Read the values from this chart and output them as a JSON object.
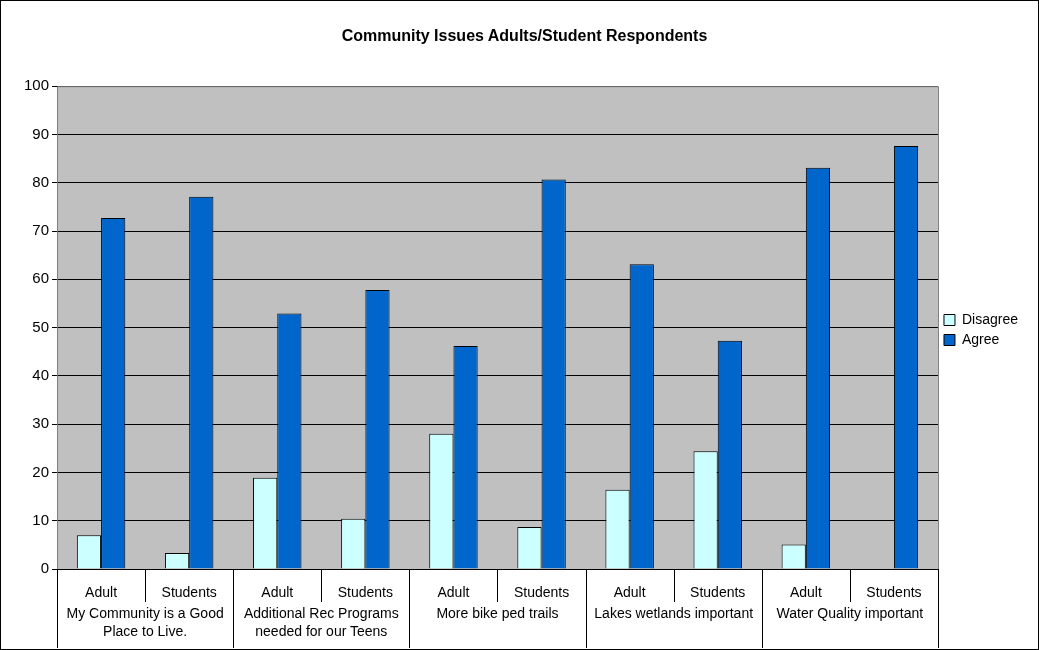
{
  "chart_data": {
    "type": "bar",
    "title": "Community Issues Adults/Student Respondents",
    "categories": [
      "Adult",
      "Students",
      "Adult",
      "Students",
      "Adult",
      "Students",
      "Adult",
      "Students",
      "Adult",
      "Students"
    ],
    "annotations": [
      "My Community is a Good Place to Live.",
      "Additional Rec Programs needed for our Teens",
      "More bike ped trails",
      "Lakes wetlands important",
      "Water Quality important"
    ],
    "series": [
      {
        "name": "Disagree",
        "color": "#ccffff",
        "values": [
          7,
          3.3,
          18.9,
          10.4,
          28,
          8.7,
          16.4,
          24.4,
          5.1,
          0
        ]
      },
      {
        "name": "Agree",
        "color": "#0066cc",
        "values": [
          72.7,
          77.1,
          52.9,
          57.8,
          46.2,
          80.7,
          63.1,
          47.3,
          83.1,
          87.6
        ]
      }
    ],
    "ylim": [
      0,
      100
    ],
    "yticks": [
      0,
      10,
      20,
      30,
      40,
      50,
      60,
      70,
      80,
      90,
      100
    ],
    "grid": "y",
    "legend": "right"
  }
}
